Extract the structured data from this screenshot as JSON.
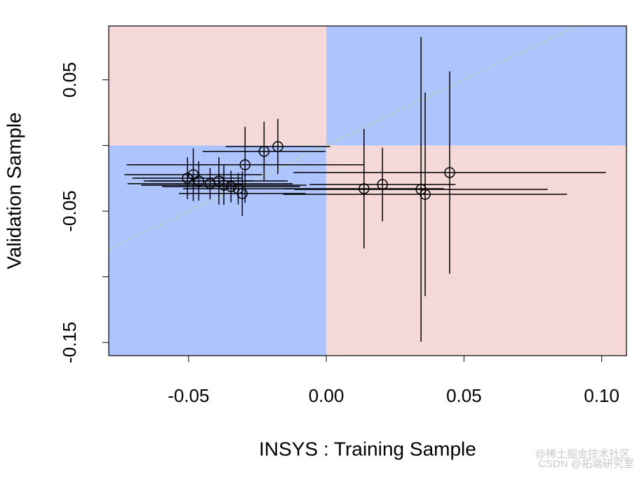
{
  "chart_data": {
    "type": "scatter",
    "x_label": "INSYS : Training Sample",
    "y_label": "Validation Sample",
    "xlim": [
      -0.079,
      0.109
    ],
    "ylim": [
      -0.16,
      0.091
    ],
    "xticks": [
      -0.05,
      {
        "value": 0,
        "label": "0.00"
      },
      0.05,
      {
        "value": 0.1,
        "label": "0.10"
      }
    ],
    "yticks": [
      -0.15,
      -0.05,
      0.05
    ],
    "yminor_ticks": [
      -0.1,
      0
    ],
    "background_colors": {
      "agree": "#aec4fd",
      "disagree": "#f5d9d9"
    },
    "reference_line_color": "#c6d9a6",
    "color": "#000000",
    "series": [
      {
        "name": "Validation Sample",
        "x": [
          -0.0176,
          -0.0226,
          -0.0295,
          0.0448,
          0.0204,
          0.0137,
          0.0344,
          0.0359,
          -0.0305,
          -0.0504,
          -0.0483,
          -0.0463,
          -0.0422,
          -0.039,
          -0.0372,
          -0.0346,
          -0.032
        ],
        "values": [
          -0.0008,
          -0.0045,
          -0.0147,
          -0.0206,
          -0.0297,
          -0.0329,
          -0.0334,
          -0.0372,
          -0.0366,
          -0.0249,
          -0.0222,
          -0.027,
          -0.0291,
          -0.027,
          -0.0302,
          -0.0313,
          -0.0329
        ],
        "xerr": [
          0.019,
          0.0223,
          0.043,
          0.0567,
          0.0265,
          0.029,
          0.046,
          0.0515,
          0.023,
          0.02,
          0.025,
          0.02,
          0.03,
          0.025,
          0.03,
          0.025,
          0.02
        ],
        "yerr": [
          0.021,
          0.0227,
          0.029,
          0.077,
          0.028,
          0.0455,
          0.116,
          0.0775,
          0.017,
          0.016,
          0.02,
          0.015,
          0.012,
          0.018,
          0.015,
          0.012,
          0.012
        ]
      }
    ],
    "watermarks": [
      "@稀土掘金技术社区",
      "CSDN @拓端研究室"
    ]
  }
}
